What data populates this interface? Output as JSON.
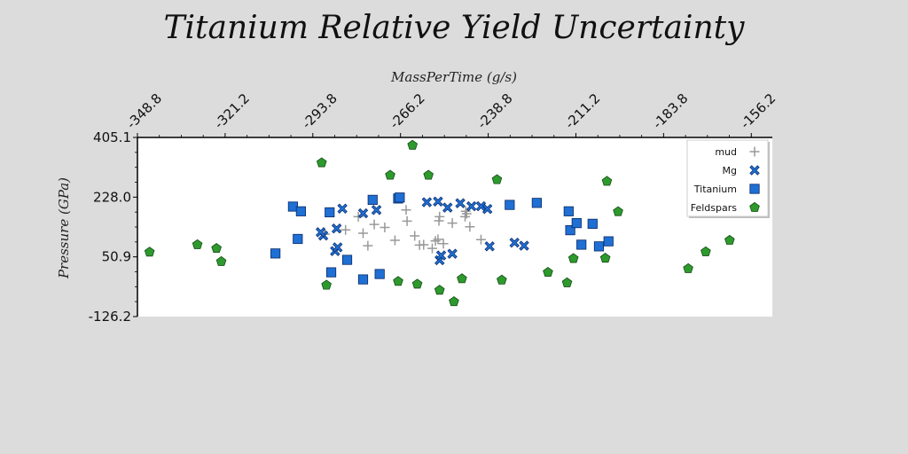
{
  "chart_data": {
    "type": "scatter",
    "title": "Titanium Relative Yield Uncertainty",
    "xlabel": "MassPerTime (g/s)",
    "ylabel": "Pressure (GPa)",
    "xlim": [
      -348.8,
      -149.6
    ],
    "ylim": [
      -126.2,
      405.1
    ],
    "xticks": [
      "-348.8",
      "-321.2",
      "-293.8",
      "-266.2",
      "-238.8",
      "-211.2",
      "-183.8",
      "-156.2"
    ],
    "yticks": [
      "405.1",
      "228.0",
      "50.9",
      "-126.2"
    ],
    "x_axis_position": "top",
    "grid": false,
    "legend_position": "top-right",
    "series": [
      {
        "name": "mud",
        "marker": "plus",
        "color": "#999999",
        "points": [
          [
            -278.0,
            121.0
          ],
          [
            -279.5,
            170.0
          ],
          [
            -274.5,
            147.0
          ],
          [
            -276.5,
            84.0
          ],
          [
            -271.2,
            138.0
          ],
          [
            -268.0,
            100.0
          ],
          [
            -264.5,
            190.0
          ],
          [
            -264.2,
            157.0
          ],
          [
            -261.8,
            113.0
          ],
          [
            -260.3,
            86.0
          ],
          [
            -259.0,
            87.0
          ],
          [
            -256.3,
            76.0
          ],
          [
            -255.3,
            98.0
          ],
          [
            -254.5,
            103.0
          ],
          [
            -254.2,
            158.0
          ],
          [
            -254.0,
            170.0
          ],
          [
            -252.8,
            90.0
          ],
          [
            -250.0,
            151.0
          ],
          [
            -246.0,
            170.0
          ],
          [
            -245.5,
            179.0
          ],
          [
            -244.5,
            140.0
          ],
          [
            -241.0,
            102.0
          ],
          [
            -290.0,
            118.0
          ],
          [
            -283.5,
            131.0
          ],
          [
            -245.8,
            186.0
          ]
        ]
      },
      {
        "name": "Mg",
        "marker": "x",
        "color": "#1f6fd4",
        "points": [
          [
            -290.5,
            114.0
          ],
          [
            -291.3,
            124.0
          ],
          [
            -286.8,
            68.0
          ],
          [
            -286.0,
            79.0
          ],
          [
            -286.3,
            135.0
          ],
          [
            -284.5,
            194.0
          ],
          [
            -278.0,
            180.0
          ],
          [
            -273.8,
            190.0
          ],
          [
            -258.0,
            213.0
          ],
          [
            -254.5,
            215.0
          ],
          [
            -254.0,
            41.0
          ],
          [
            -253.5,
            55.0
          ],
          [
            -251.5,
            197.0
          ],
          [
            -250.0,
            60.0
          ],
          [
            -247.5,
            210.0
          ],
          [
            -244.0,
            201.0
          ],
          [
            -241.0,
            201.0
          ],
          [
            -239.0,
            193.0
          ],
          [
            -238.3,
            82.0
          ],
          [
            -230.5,
            93.0
          ],
          [
            -227.5,
            84.0
          ]
        ]
      },
      {
        "name": "Titanium",
        "marker": "square",
        "color": "#1f6fd4",
        "points": [
          [
            -305.5,
            61.0
          ],
          [
            -300.0,
            200.0
          ],
          [
            -297.5,
            186.0
          ],
          [
            -298.5,
            104.0
          ],
          [
            -288.5,
            183.0
          ],
          [
            -288.0,
            5.0
          ],
          [
            -283.0,
            42.0
          ],
          [
            -278.0,
            -16.0
          ],
          [
            -275.0,
            220.0
          ],
          [
            -272.8,
            0.0
          ],
          [
            -267.0,
            224.0
          ],
          [
            -266.5,
            227.0
          ],
          [
            -232.0,
            205.0
          ],
          [
            -223.5,
            211.0
          ],
          [
            -213.0,
            130.0
          ],
          [
            -213.5,
            186.0
          ],
          [
            -211.0,
            151.0
          ],
          [
            -209.5,
            87.0
          ],
          [
            -206.0,
            149.0
          ],
          [
            -204.0,
            82.0
          ],
          [
            -201.0,
            97.0
          ]
        ]
      },
      {
        "name": "Feldspars",
        "marker": "pentagon",
        "color": "#2e9a2e",
        "points": [
          [
            -345.0,
            65.0
          ],
          [
            -330.0,
            87.0
          ],
          [
            -324.0,
            76.0
          ],
          [
            -322.5,
            37.0
          ],
          [
            -291.0,
            330.0
          ],
          [
            -289.5,
            -33.0
          ],
          [
            -269.5,
            293.0
          ],
          [
            -267.0,
            -22.0
          ],
          [
            -262.5,
            382.0
          ],
          [
            -261.0,
            -30.0
          ],
          [
            -257.5,
            293.0
          ],
          [
            -254.0,
            -48.0
          ],
          [
            -249.5,
            -82.0
          ],
          [
            -247.0,
            -14.0
          ],
          [
            -236.0,
            280.0
          ],
          [
            -234.5,
            -18.0
          ],
          [
            -220.0,
            5.0
          ],
          [
            -214.0,
            -26.0
          ],
          [
            -212.0,
            46.0
          ],
          [
            -202.0,
            47.0
          ],
          [
            -201.5,
            275.0
          ],
          [
            -198.0,
            185.0
          ],
          [
            -176.0,
            16.0
          ],
          [
            -170.5,
            66.0
          ],
          [
            -163.0,
            100.0
          ]
        ]
      }
    ]
  }
}
